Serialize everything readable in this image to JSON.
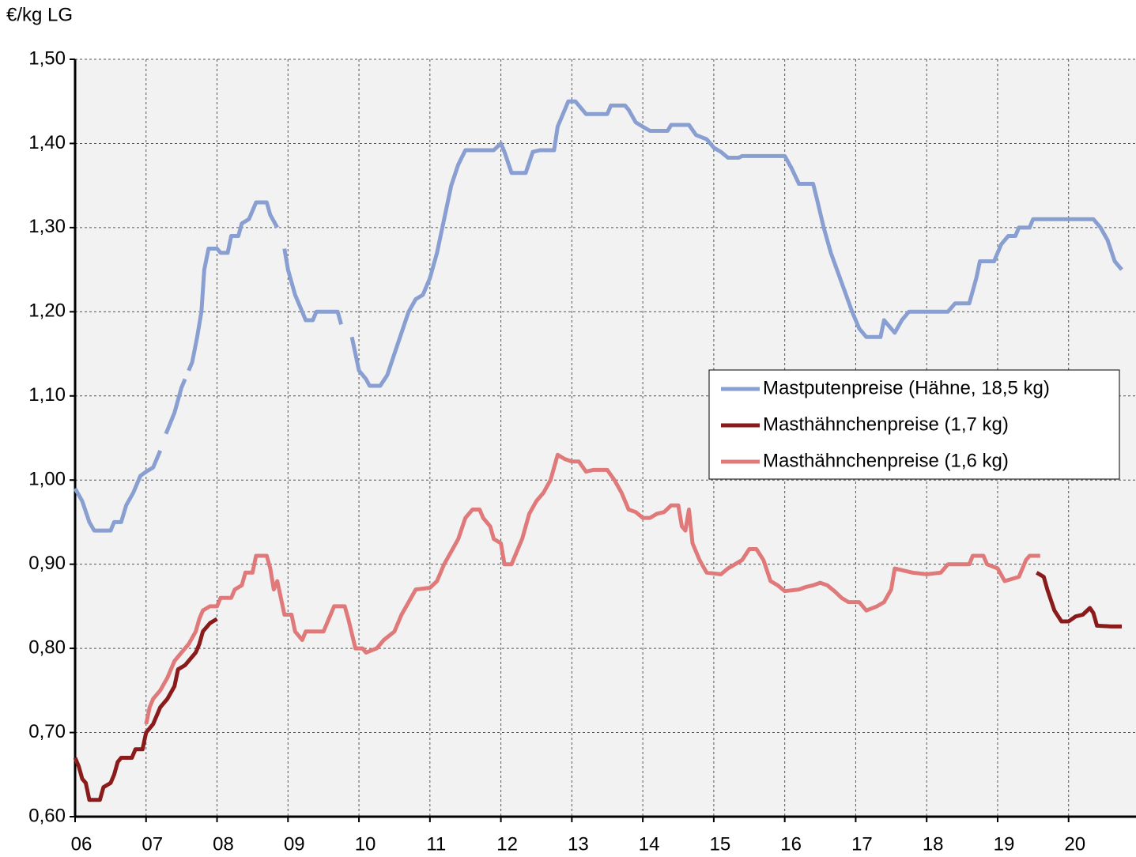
{
  "chart_data": {
    "type": "line",
    "y_label": "€/kg LG",
    "xlim": [
      6,
      20.95
    ],
    "ylim": [
      0.6,
      1.5
    ],
    "grid": true,
    "legend": "right",
    "xticks": [
      {
        "value": 6,
        "label": "06"
      },
      {
        "value": 7,
        "label": "07"
      },
      {
        "value": 8,
        "label": "08"
      },
      {
        "value": 9,
        "label": "09"
      },
      {
        "value": 10,
        "label": "10"
      },
      {
        "value": 11,
        "label": "11"
      },
      {
        "value": 12,
        "label": "12"
      },
      {
        "value": 13,
        "label": "13"
      },
      {
        "value": 14,
        "label": "14"
      },
      {
        "value": 15,
        "label": "15"
      },
      {
        "value": 16,
        "label": "16"
      },
      {
        "value": 17,
        "label": "17"
      },
      {
        "value": 18,
        "label": "18"
      },
      {
        "value": 19,
        "label": "19"
      },
      {
        "value": 20,
        "label": "20"
      }
    ],
    "yticks": [
      {
        "value": 0.6,
        "label": "0,60"
      },
      {
        "value": 0.7,
        "label": "0,70"
      },
      {
        "value": 0.8,
        "label": "0,80"
      },
      {
        "value": 0.9,
        "label": "0,90"
      },
      {
        "value": 1.0,
        "label": "1,00"
      },
      {
        "value": 1.1,
        "label": "1,10"
      },
      {
        "value": 1.2,
        "label": "1,20"
      },
      {
        "value": 1.3,
        "label": "1,30"
      },
      {
        "value": 1.4,
        "label": "1,40"
      },
      {
        "value": 1.5,
        "label": "1,50"
      }
    ],
    "series": [
      {
        "name": "Mastputenpreise (Hähne, 18,5 kg)",
        "color": "#8a9fd1",
        "x": [
          6.0,
          6.1,
          6.2,
          6.27,
          6.5,
          6.55,
          6.65,
          6.72,
          6.82,
          6.92,
          7.0,
          7.1,
          7.2,
          null,
          7.28,
          7.4,
          7.5,
          7.55,
          null,
          7.6,
          7.65,
          7.72,
          7.78,
          7.82,
          7.88,
          8.0,
          8.05,
          8.15,
          8.2,
          8.3,
          8.35,
          8.45,
          8.5,
          8.55,
          8.7,
          8.75,
          8.85,
          null,
          8.95,
          9.0,
          9.1,
          9.2,
          9.25,
          9.35,
          9.4,
          9.7,
          9.75,
          null,
          9.9,
          10.0,
          10.1,
          10.15,
          10.3,
          10.4,
          10.5,
          10.6,
          10.7,
          10.8,
          10.9,
          11.0,
          11.1,
          11.2,
          11.3,
          11.4,
          11.5,
          11.9,
          12.0,
          12.05,
          12.15,
          12.35,
          12.45,
          12.55,
          12.75,
          12.8,
          12.9,
          12.95,
          13.05,
          13.15,
          13.2,
          13.5,
          13.55,
          13.75,
          13.8,
          13.9,
          14.0,
          14.1,
          14.35,
          14.4,
          14.65,
          14.75,
          14.9,
          15.0,
          15.1,
          15.2,
          15.35,
          15.4,
          16.0,
          16.1,
          16.2,
          16.4,
          16.45,
          16.55,
          16.65,
          16.8,
          16.95,
          17.05,
          17.15,
          17.35,
          17.4,
          17.55,
          17.65,
          17.75,
          18.3,
          18.4,
          18.6,
          18.7,
          18.75,
          18.95,
          19.05,
          19.15,
          19.25,
          19.3,
          19.45,
          19.5,
          20.35,
          20.45,
          20.55,
          20.65,
          20.75
        ],
        "values": [
          0.99,
          0.975,
          0.95,
          0.94,
          0.94,
          0.95,
          0.95,
          0.97,
          0.985,
          1.005,
          1.01,
          1.015,
          1.035,
          null,
          1.055,
          1.08,
          1.11,
          1.12,
          null,
          1.13,
          1.14,
          1.17,
          1.2,
          1.25,
          1.275,
          1.275,
          1.27,
          1.27,
          1.29,
          1.29,
          1.305,
          1.31,
          1.32,
          1.33,
          1.33,
          1.315,
          1.3,
          null,
          1.275,
          1.25,
          1.22,
          1.2,
          1.19,
          1.19,
          1.2,
          1.2,
          1.185,
          null,
          1.17,
          1.13,
          1.12,
          1.112,
          1.112,
          1.125,
          1.15,
          1.175,
          1.2,
          1.215,
          1.22,
          1.24,
          1.27,
          1.31,
          1.35,
          1.375,
          1.392,
          1.392,
          1.4,
          1.39,
          1.365,
          1.365,
          1.39,
          1.392,
          1.392,
          1.42,
          1.44,
          1.45,
          1.45,
          1.44,
          1.435,
          1.435,
          1.445,
          1.445,
          1.44,
          1.425,
          1.42,
          1.415,
          1.415,
          1.422,
          1.422,
          1.41,
          1.405,
          1.395,
          1.39,
          1.383,
          1.383,
          1.385,
          1.385,
          1.37,
          1.352,
          1.352,
          1.335,
          1.3,
          1.27,
          1.235,
          1.2,
          1.18,
          1.17,
          1.17,
          1.19,
          1.175,
          1.19,
          1.2,
          1.2,
          1.21,
          1.21,
          1.24,
          1.26,
          1.26,
          1.28,
          1.29,
          1.29,
          1.3,
          1.3,
          1.31,
          1.31,
          1.3,
          1.285,
          1.26,
          1.25
        ]
      },
      {
        "name": "Masthähnchenpreise (1,7 kg)",
        "color": "#8b1a1a",
        "x": [
          6.0,
          6.05,
          6.1,
          6.15,
          6.2,
          6.35,
          6.4,
          6.5,
          6.55,
          6.6,
          6.65,
          6.8,
          6.85,
          6.95,
          7.0,
          7.1,
          7.2,
          7.3,
          7.4,
          7.45,
          7.55,
          7.7,
          7.75,
          7.8,
          7.9,
          8.0,
          null,
          19.55,
          19.65,
          19.7,
          19.8,
          19.9,
          20.0,
          20.1,
          20.2,
          20.3,
          20.35,
          20.4,
          20.6,
          20.75
        ],
        "values": [
          0.67,
          0.66,
          0.645,
          0.64,
          0.62,
          0.62,
          0.635,
          0.64,
          0.65,
          0.665,
          0.67,
          0.67,
          0.68,
          0.68,
          0.7,
          0.71,
          0.73,
          0.74,
          0.755,
          0.775,
          0.78,
          0.795,
          0.805,
          0.82,
          0.83,
          0.835,
          null,
          0.89,
          0.885,
          0.87,
          0.845,
          0.832,
          0.832,
          0.838,
          0.84,
          0.848,
          0.842,
          0.827,
          0.826,
          0.826
        ]
      },
      {
        "name": "Masthähnchenpreise (1,6 kg)",
        "color": "#e07a7a",
        "x": [
          7.0,
          7.05,
          7.1,
          7.2,
          7.3,
          7.4,
          7.5,
          7.6,
          7.7,
          7.75,
          7.8,
          7.9,
          8.0,
          8.05,
          8.2,
          8.25,
          8.35,
          8.4,
          8.5,
          8.55,
          8.7,
          8.75,
          8.8,
          8.85,
          8.95,
          9.05,
          9.1,
          9.2,
          9.25,
          9.5,
          9.6,
          9.65,
          9.8,
          9.85,
          9.95,
          10.05,
          10.1,
          10.25,
          10.35,
          10.5,
          10.6,
          10.7,
          10.8,
          11.0,
          11.1,
          11.2,
          11.3,
          11.4,
          11.5,
          11.6,
          11.7,
          11.75,
          11.85,
          11.9,
          12.0,
          12.05,
          12.15,
          12.2,
          12.3,
          12.4,
          12.5,
          12.6,
          12.7,
          12.8,
          12.9,
          13.0,
          13.1,
          13.2,
          13.3,
          13.5,
          13.6,
          13.7,
          13.8,
          13.9,
          14.0,
          14.1,
          14.2,
          14.3,
          14.4,
          14.5,
          14.55,
          14.6,
          14.65,
          14.7,
          14.8,
          14.9,
          15.1,
          15.2,
          15.3,
          15.4,
          15.5,
          15.6,
          15.7,
          15.8,
          15.9,
          16.0,
          16.2,
          16.3,
          16.4,
          16.5,
          16.6,
          16.7,
          16.8,
          16.9,
          17.05,
          17.15,
          17.3,
          17.4,
          17.5,
          17.55,
          17.8,
          18.0,
          18.2,
          18.3,
          18.6,
          18.65,
          18.8,
          18.85,
          19.0,
          19.1,
          19.3,
          19.4,
          19.45,
          19.6
        ],
        "values": [
          0.71,
          0.73,
          0.74,
          0.75,
          0.765,
          0.785,
          0.795,
          0.805,
          0.82,
          0.835,
          0.845,
          0.85,
          0.85,
          0.86,
          0.86,
          0.87,
          0.875,
          0.89,
          0.89,
          0.91,
          0.91,
          0.895,
          0.87,
          0.88,
          0.84,
          0.84,
          0.82,
          0.81,
          0.82,
          0.82,
          0.84,
          0.85,
          0.85,
          0.835,
          0.8,
          0.8,
          0.795,
          0.8,
          0.81,
          0.82,
          0.84,
          0.855,
          0.87,
          0.872,
          0.88,
          0.9,
          0.915,
          0.93,
          0.955,
          0.965,
          0.965,
          0.955,
          0.945,
          0.93,
          0.925,
          0.9,
          0.9,
          0.91,
          0.93,
          0.96,
          0.975,
          0.985,
          1.0,
          1.03,
          1.025,
          1.022,
          1.022,
          1.01,
          1.012,
          1.012,
          1.0,
          0.985,
          0.965,
          0.962,
          0.955,
          0.955,
          0.96,
          0.962,
          0.97,
          0.97,
          0.945,
          0.94,
          0.965,
          0.925,
          0.905,
          0.89,
          0.888,
          0.895,
          0.9,
          0.905,
          0.918,
          0.918,
          0.905,
          0.88,
          0.875,
          0.868,
          0.87,
          0.873,
          0.875,
          0.878,
          0.875,
          0.868,
          0.86,
          0.855,
          0.855,
          0.845,
          0.85,
          0.855,
          0.87,
          0.895,
          0.89,
          0.888,
          0.89,
          0.9,
          0.9,
          0.91,
          0.91,
          0.9,
          0.895,
          0.88,
          0.885,
          0.905,
          0.91,
          0.91
        ]
      }
    ]
  }
}
